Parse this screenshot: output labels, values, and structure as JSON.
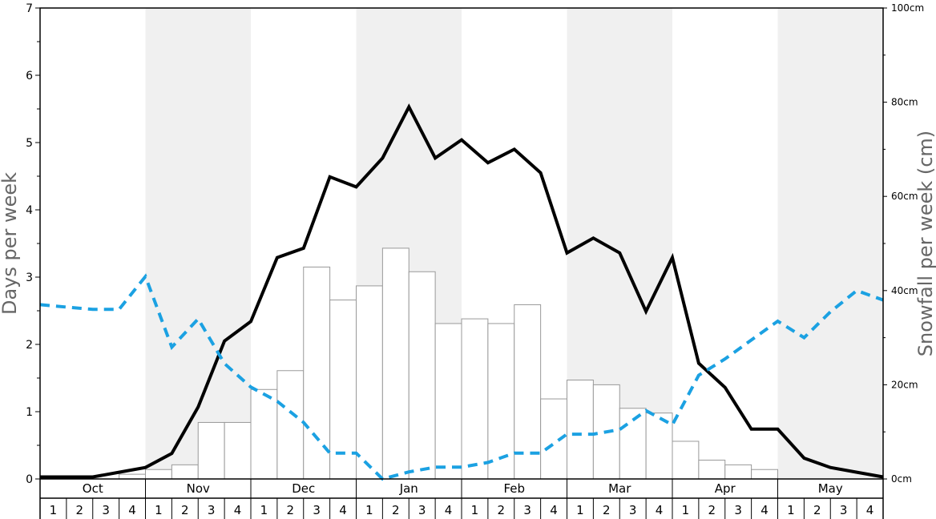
{
  "chart_data": {
    "type": "bar",
    "title": "",
    "ylabel_left": "Days per week",
    "ylabel_right": "Snowfall per week (cm)",
    "ylim_left": [
      0,
      7
    ],
    "ylim_right": [
      0,
      100
    ],
    "yticks_left": [
      "0",
      "1",
      "2",
      "3",
      "4",
      "5",
      "6",
      "7"
    ],
    "yticks_right": [
      "0cm",
      "20cm",
      "40cm",
      "60cm",
      "80cm",
      "100cm"
    ],
    "months": [
      "Oct",
      "Nov",
      "Dec",
      "Jan",
      "Feb",
      "Mar",
      "Apr",
      "May"
    ],
    "weeks": [
      "1",
      "2",
      "3",
      "4"
    ],
    "shaded_months": [
      "Nov",
      "Jan",
      "Mar",
      "May"
    ],
    "grid": false,
    "legend": "none",
    "colors": {
      "bar_fill": "#ffffff",
      "bar_stroke": "#999999",
      "line_days": "#000000",
      "line_dashed": "#1ba1e2",
      "shade": "#f0f0f0"
    },
    "series": [
      {
        "kind": "bar",
        "axis": "right",
        "values": [
          0,
          0,
          0,
          1,
          2,
          3,
          12,
          12,
          19,
          23,
          45,
          38,
          41,
          49,
          44,
          33,
          34,
          33,
          37,
          17,
          21,
          20,
          15,
          14,
          8,
          4,
          3,
          2,
          0,
          0,
          0,
          0
        ]
      },
      {
        "kind": "line",
        "axis": "left",
        "style": "solid",
        "values": [
          0.03,
          0.03,
          0.03,
          0.1,
          0.17,
          0.38,
          1.07,
          2.05,
          2.34,
          3.29,
          3.43,
          4.49,
          4.34,
          4.77,
          5.53,
          4.77,
          5.04,
          4.7,
          4.9,
          4.55,
          3.36,
          3.58,
          3.36,
          2.49,
          3.29,
          1.72,
          1.36,
          0.74,
          0.74,
          0.31,
          0.17,
          0.1,
          0.03
        ]
      },
      {
        "kind": "line",
        "axis": "right",
        "style": "dashed",
        "values": [
          37,
          36.5,
          36,
          36,
          43,
          28,
          34,
          24.5,
          19.5,
          16.5,
          12,
          5.5,
          5.5,
          0,
          1.5,
          2.5,
          2.5,
          3.5,
          5.5,
          5.5,
          9.5,
          9.5,
          10.5,
          14.5,
          11.5,
          22,
          25.5,
          29.5,
          33.5,
          30,
          35.5,
          40,
          38
        ]
      }
    ]
  }
}
